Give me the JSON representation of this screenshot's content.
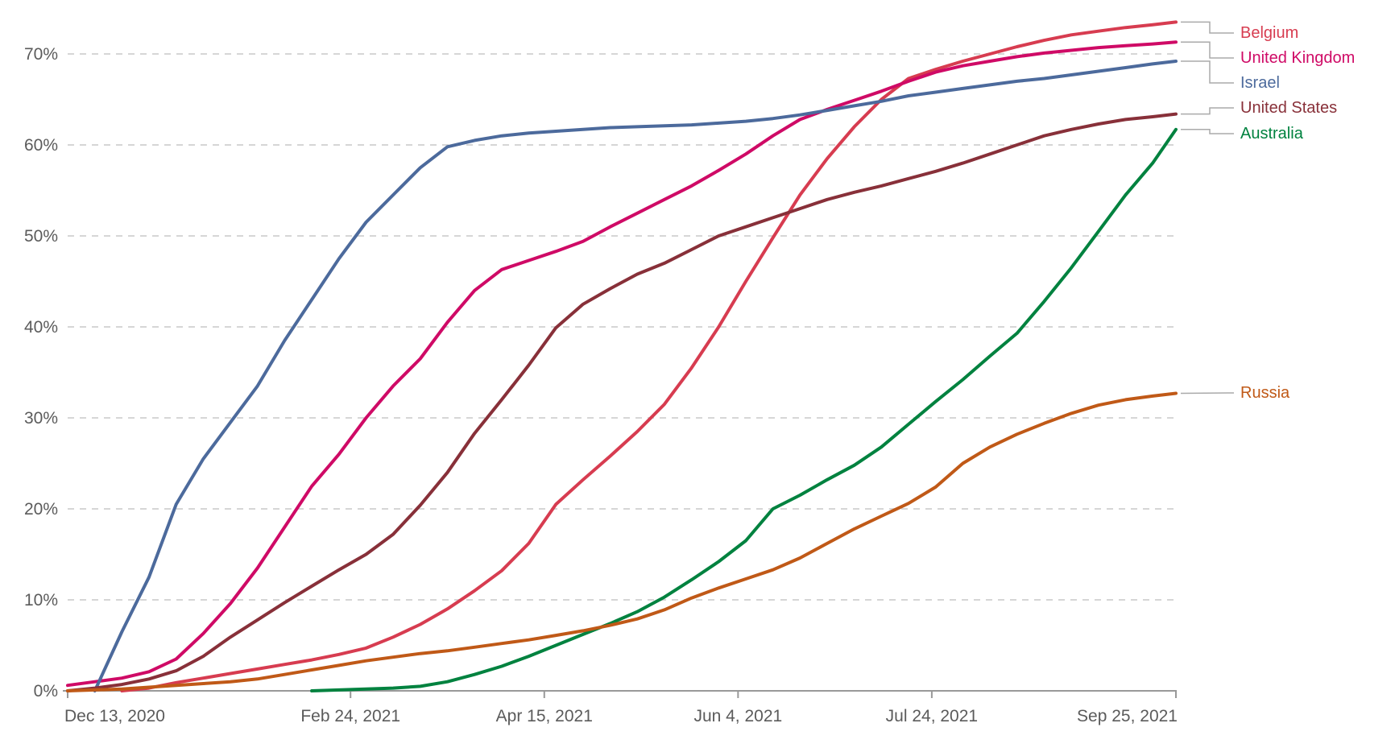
{
  "chart_data": {
    "type": "line",
    "unit": "%",
    "x_axis": {
      "domain_days": [
        0,
        286
      ],
      "ticks": [
        {
          "day": 0,
          "label": "Dec 13, 2020"
        },
        {
          "day": 73,
          "label": "Feb 24, 2021"
        },
        {
          "day": 123,
          "label": "Apr 15, 2021"
        },
        {
          "day": 173,
          "label": "Jun 4, 2021"
        },
        {
          "day": 223,
          "label": "Jul 24, 2021"
        },
        {
          "day": 286,
          "label": "Sep 25, 2021"
        }
      ]
    },
    "y_axis": {
      "min": 0,
      "max": 70,
      "grid": "dashed",
      "ticks": [
        {
          "value": 0,
          "label": "0%"
        },
        {
          "value": 10,
          "label": "10%"
        },
        {
          "value": 20,
          "label": "20%"
        },
        {
          "value": 30,
          "label": "30%"
        },
        {
          "value": 40,
          "label": "40%"
        },
        {
          "value": 50,
          "label": "50%"
        },
        {
          "value": 60,
          "label": "60%"
        },
        {
          "value": 70,
          "label": "70%"
        }
      ]
    },
    "legend_position": "right-labels",
    "series": [
      {
        "name": "Belgium",
        "color": "#D73C50",
        "points": [
          [
            14,
            0.0
          ],
          [
            21,
            0.3
          ],
          [
            28,
            0.9
          ],
          [
            35,
            1.4
          ],
          [
            42,
            1.9
          ],
          [
            49,
            2.4
          ],
          [
            56,
            2.9
          ],
          [
            63,
            3.4
          ],
          [
            70,
            4.0
          ],
          [
            77,
            4.7
          ],
          [
            84,
            5.9
          ],
          [
            91,
            7.3
          ],
          [
            98,
            9.0
          ],
          [
            105,
            11.0
          ],
          [
            112,
            13.2
          ],
          [
            119,
            16.2
          ],
          [
            126,
            20.5
          ],
          [
            133,
            23.2
          ],
          [
            140,
            25.8
          ],
          [
            147,
            28.5
          ],
          [
            154,
            31.5
          ],
          [
            161,
            35.5
          ],
          [
            168,
            40.0
          ],
          [
            175,
            45.0
          ],
          [
            182,
            49.8
          ],
          [
            189,
            54.5
          ],
          [
            196,
            58.5
          ],
          [
            203,
            62.0
          ],
          [
            210,
            65.0
          ],
          [
            217,
            67.3
          ],
          [
            224,
            68.3
          ],
          [
            231,
            69.2
          ],
          [
            238,
            70.0
          ],
          [
            245,
            70.8
          ],
          [
            252,
            71.5
          ],
          [
            259,
            72.1
          ],
          [
            266,
            72.5
          ],
          [
            273,
            72.9
          ],
          [
            280,
            73.2
          ],
          [
            286,
            73.5
          ]
        ]
      },
      {
        "name": "United Kingdom",
        "color": "#CF0A66",
        "points": [
          [
            0,
            0.6
          ],
          [
            7,
            1.0
          ],
          [
            14,
            1.4
          ],
          [
            21,
            2.1
          ],
          [
            28,
            3.5
          ],
          [
            35,
            6.3
          ],
          [
            42,
            9.6
          ],
          [
            49,
            13.5
          ],
          [
            56,
            18.0
          ],
          [
            63,
            22.5
          ],
          [
            70,
            26.0
          ],
          [
            77,
            30.0
          ],
          [
            84,
            33.5
          ],
          [
            91,
            36.5
          ],
          [
            98,
            40.5
          ],
          [
            105,
            44.0
          ],
          [
            112,
            46.3
          ],
          [
            119,
            47.3
          ],
          [
            126,
            48.3
          ],
          [
            133,
            49.4
          ],
          [
            140,
            51.0
          ],
          [
            147,
            52.5
          ],
          [
            154,
            54.0
          ],
          [
            161,
            55.5
          ],
          [
            168,
            57.2
          ],
          [
            175,
            59.0
          ],
          [
            182,
            61.0
          ],
          [
            189,
            62.8
          ],
          [
            196,
            63.9
          ],
          [
            203,
            64.9
          ],
          [
            210,
            65.9
          ],
          [
            217,
            67.0
          ],
          [
            224,
            68.0
          ],
          [
            231,
            68.7
          ],
          [
            238,
            69.2
          ],
          [
            245,
            69.7
          ],
          [
            252,
            70.1
          ],
          [
            259,
            70.4
          ],
          [
            266,
            70.7
          ],
          [
            273,
            70.9
          ],
          [
            280,
            71.1
          ],
          [
            286,
            71.3
          ]
        ]
      },
      {
        "name": "Israel",
        "color": "#4C6A9C",
        "points": [
          [
            7,
            0.0
          ],
          [
            14,
            6.5
          ],
          [
            21,
            12.5
          ],
          [
            28,
            20.5
          ],
          [
            35,
            25.5
          ],
          [
            42,
            29.5
          ],
          [
            49,
            33.5
          ],
          [
            56,
            38.5
          ],
          [
            63,
            43.0
          ],
          [
            70,
            47.5
          ],
          [
            77,
            51.5
          ],
          [
            84,
            54.5
          ],
          [
            91,
            57.5
          ],
          [
            98,
            59.8
          ],
          [
            105,
            60.5
          ],
          [
            112,
            61.0
          ],
          [
            119,
            61.3
          ],
          [
            126,
            61.5
          ],
          [
            133,
            61.7
          ],
          [
            140,
            61.9
          ],
          [
            147,
            62.0
          ],
          [
            154,
            62.1
          ],
          [
            161,
            62.2
          ],
          [
            168,
            62.4
          ],
          [
            175,
            62.6
          ],
          [
            182,
            62.9
          ],
          [
            189,
            63.3
          ],
          [
            196,
            63.8
          ],
          [
            203,
            64.3
          ],
          [
            210,
            64.8
          ],
          [
            217,
            65.4
          ],
          [
            224,
            65.8
          ],
          [
            231,
            66.2
          ],
          [
            238,
            66.6
          ],
          [
            245,
            67.0
          ],
          [
            252,
            67.3
          ],
          [
            259,
            67.7
          ],
          [
            266,
            68.1
          ],
          [
            273,
            68.5
          ],
          [
            280,
            68.9
          ],
          [
            286,
            69.2
          ]
        ]
      },
      {
        "name": "United States",
        "color": "#883039",
        "points": [
          [
            0,
            0.0
          ],
          [
            7,
            0.3
          ],
          [
            14,
            0.7
          ],
          [
            21,
            1.3
          ],
          [
            28,
            2.2
          ],
          [
            35,
            3.8
          ],
          [
            42,
            5.9
          ],
          [
            49,
            7.8
          ],
          [
            56,
            9.7
          ],
          [
            63,
            11.5
          ],
          [
            70,
            13.3
          ],
          [
            77,
            15.0
          ],
          [
            84,
            17.2
          ],
          [
            91,
            20.4
          ],
          [
            98,
            24.0
          ],
          [
            105,
            28.3
          ],
          [
            112,
            32.0
          ],
          [
            119,
            35.8
          ],
          [
            126,
            39.9
          ],
          [
            133,
            42.5
          ],
          [
            140,
            44.2
          ],
          [
            147,
            45.8
          ],
          [
            154,
            47.0
          ],
          [
            161,
            48.5
          ],
          [
            168,
            50.0
          ],
          [
            175,
            51.0
          ],
          [
            182,
            52.0
          ],
          [
            189,
            53.0
          ],
          [
            196,
            54.0
          ],
          [
            203,
            54.8
          ],
          [
            210,
            55.5
          ],
          [
            217,
            56.3
          ],
          [
            224,
            57.1
          ],
          [
            231,
            58.0
          ],
          [
            238,
            59.0
          ],
          [
            245,
            60.0
          ],
          [
            252,
            61.0
          ],
          [
            259,
            61.7
          ],
          [
            266,
            62.3
          ],
          [
            273,
            62.8
          ],
          [
            280,
            63.1
          ],
          [
            286,
            63.4
          ]
        ]
      },
      {
        "name": "Australia",
        "color": "#00823F",
        "points": [
          [
            63,
            0.0
          ],
          [
            70,
            0.1
          ],
          [
            77,
            0.2
          ],
          [
            84,
            0.3
          ],
          [
            91,
            0.5
          ],
          [
            98,
            1.0
          ],
          [
            105,
            1.8
          ],
          [
            112,
            2.7
          ],
          [
            119,
            3.8
          ],
          [
            126,
            5.0
          ],
          [
            133,
            6.2
          ],
          [
            140,
            7.4
          ],
          [
            147,
            8.7
          ],
          [
            154,
            10.3
          ],
          [
            161,
            12.2
          ],
          [
            168,
            14.2
          ],
          [
            175,
            16.5
          ],
          [
            182,
            20.0
          ],
          [
            189,
            21.5
          ],
          [
            196,
            23.2
          ],
          [
            203,
            24.8
          ],
          [
            210,
            26.8
          ],
          [
            217,
            29.3
          ],
          [
            224,
            31.8
          ],
          [
            231,
            34.2
          ],
          [
            238,
            36.8
          ],
          [
            245,
            39.3
          ],
          [
            252,
            42.8
          ],
          [
            259,
            46.5
          ],
          [
            266,
            50.5
          ],
          [
            273,
            54.5
          ],
          [
            280,
            58.0
          ],
          [
            286,
            61.7
          ]
        ]
      },
      {
        "name": "Russia",
        "color": "#C05917",
        "points": [
          [
            0,
            0.0
          ],
          [
            7,
            0.1
          ],
          [
            14,
            0.2
          ],
          [
            21,
            0.4
          ],
          [
            28,
            0.6
          ],
          [
            35,
            0.8
          ],
          [
            42,
            1.0
          ],
          [
            49,
            1.3
          ],
          [
            56,
            1.8
          ],
          [
            63,
            2.3
          ],
          [
            70,
            2.8
          ],
          [
            77,
            3.3
          ],
          [
            84,
            3.7
          ],
          [
            91,
            4.1
          ],
          [
            98,
            4.4
          ],
          [
            105,
            4.8
          ],
          [
            112,
            5.2
          ],
          [
            119,
            5.6
          ],
          [
            126,
            6.1
          ],
          [
            133,
            6.6
          ],
          [
            140,
            7.2
          ],
          [
            147,
            7.9
          ],
          [
            154,
            8.9
          ],
          [
            161,
            10.2
          ],
          [
            168,
            11.3
          ],
          [
            175,
            12.3
          ],
          [
            182,
            13.3
          ],
          [
            189,
            14.6
          ],
          [
            196,
            16.2
          ],
          [
            203,
            17.8
          ],
          [
            210,
            19.2
          ],
          [
            217,
            20.6
          ],
          [
            224,
            22.4
          ],
          [
            231,
            25.0
          ],
          [
            238,
            26.8
          ],
          [
            245,
            28.2
          ],
          [
            252,
            29.4
          ],
          [
            259,
            30.5
          ],
          [
            266,
            31.4
          ],
          [
            273,
            32.0
          ],
          [
            280,
            32.4
          ],
          [
            286,
            32.7
          ]
        ]
      }
    ],
    "colors": {
      "axis_text": "#5b5b5b",
      "gridline": "#d6d6d6",
      "axis_line": "#999999",
      "connector": "#aaaaaa"
    }
  }
}
